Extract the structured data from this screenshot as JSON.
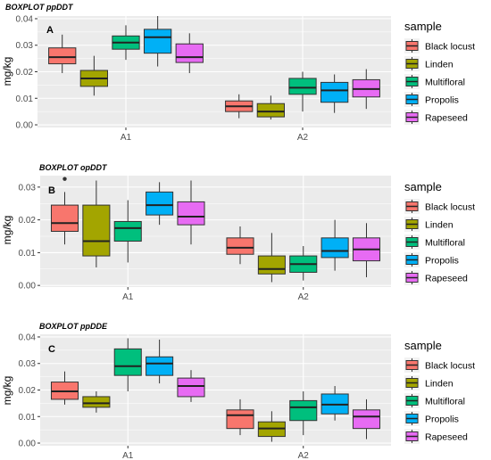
{
  "colors": {
    "Black locust": "#F8766D",
    "Linden": "#A3A500",
    "Multifloral": "#00BF7D",
    "Propolis": "#00B0F6",
    "Rapeseed": "#E76BF3"
  },
  "chart_data": [
    {
      "type": "boxplot",
      "title": "BOXPLOT ppDDT",
      "panel_label": "A",
      "xlabel": "",
      "ylabel": "mg/kg",
      "ylim": [
        -0.001,
        0.041
      ],
      "yticks": [
        0.0,
        0.01,
        0.02,
        0.03,
        0.04
      ],
      "ytick_labels": [
        "0.00",
        "0.01",
        "0.02",
        "0.03",
        "0.04"
      ],
      "categories": [
        "A1",
        "A2"
      ],
      "legend_title": "sample",
      "grid": true,
      "series": [
        {
          "name": "Black locust",
          "boxes": [
            {
              "min": 0.0195,
              "q1": 0.023,
              "median": 0.0255,
              "q3": 0.029,
              "max": 0.034,
              "outliers": []
            },
            {
              "min": 0.0025,
              "q1": 0.005,
              "median": 0.007,
              "q3": 0.009,
              "max": 0.0115,
              "outliers": []
            }
          ]
        },
        {
          "name": "Linden",
          "boxes": [
            {
              "min": 0.011,
              "q1": 0.0145,
              "median": 0.0175,
              "q3": 0.0205,
              "max": 0.026,
              "outliers": []
            },
            {
              "min": 0.002,
              "q1": 0.003,
              "median": 0.005,
              "q3": 0.008,
              "max": 0.011,
              "outliers": []
            }
          ]
        },
        {
          "name": "Multifloral",
          "boxes": [
            {
              "min": 0.0245,
              "q1": 0.0285,
              "median": 0.031,
              "q3": 0.0335,
              "max": 0.0375,
              "outliers": []
            },
            {
              "min": 0.005,
              "q1": 0.0115,
              "median": 0.014,
              "q3": 0.0175,
              "max": 0.02,
              "outliers": []
            }
          ]
        },
        {
          "name": "Propolis",
          "boxes": [
            {
              "min": 0.022,
              "q1": 0.027,
              "median": 0.033,
              "q3": 0.036,
              "max": 0.041,
              "outliers": []
            },
            {
              "min": 0.0045,
              "q1": 0.0085,
              "median": 0.013,
              "q3": 0.016,
              "max": 0.019,
              "outliers": []
            }
          ]
        },
        {
          "name": "Rapeseed",
          "boxes": [
            {
              "min": 0.0195,
              "q1": 0.0235,
              "median": 0.0255,
              "q3": 0.0305,
              "max": 0.0345,
              "outliers": []
            },
            {
              "min": 0.006,
              "q1": 0.0105,
              "median": 0.0135,
              "q3": 0.017,
              "max": 0.021,
              "outliers": []
            }
          ]
        }
      ]
    },
    {
      "type": "boxplot",
      "title": "BOXPLOT opDDT",
      "panel_label": "B",
      "xlabel": "",
      "ylabel": "mg/kg",
      "ylim": [
        -0.0005,
        0.0335
      ],
      "yticks": [
        0.0,
        0.01,
        0.02,
        0.03
      ],
      "ytick_labels": [
        "0.00",
        "0.01",
        "0.02",
        "0.03"
      ],
      "categories": [
        "A1",
        "A2"
      ],
      "legend_title": "sample",
      "grid": true,
      "series": [
        {
          "name": "Black locust",
          "boxes": [
            {
              "min": 0.0125,
              "q1": 0.0165,
              "median": 0.019,
              "q3": 0.0245,
              "max": 0.0285,
              "outliers": [
                0.0325
              ]
            },
            {
              "min": 0.0065,
              "q1": 0.0095,
              "median": 0.0115,
              "q3": 0.0145,
              "max": 0.018,
              "outliers": []
            }
          ]
        },
        {
          "name": "Linden",
          "boxes": [
            {
              "min": 0.0055,
              "q1": 0.009,
              "median": 0.0135,
              "q3": 0.0245,
              "max": 0.032,
              "outliers": []
            },
            {
              "min": 0.001,
              "q1": 0.0035,
              "median": 0.005,
              "q3": 0.009,
              "max": 0.016,
              "outliers": []
            }
          ]
        },
        {
          "name": "Multifloral",
          "boxes": [
            {
              "min": 0.007,
              "q1": 0.0135,
              "median": 0.0175,
              "q3": 0.0195,
              "max": 0.026,
              "outliers": []
            },
            {
              "min": 0.0015,
              "q1": 0.004,
              "median": 0.0065,
              "q3": 0.009,
              "max": 0.012,
              "outliers": []
            }
          ]
        },
        {
          "name": "Propolis",
          "boxes": [
            {
              "min": 0.0185,
              "q1": 0.0215,
              "median": 0.0245,
              "q3": 0.0285,
              "max": 0.0315,
              "outliers": []
            },
            {
              "min": 0.0045,
              "q1": 0.0085,
              "median": 0.0105,
              "q3": 0.0145,
              "max": 0.02,
              "outliers": []
            }
          ]
        },
        {
          "name": "Rapeseed",
          "boxes": [
            {
              "min": 0.0125,
              "q1": 0.0185,
              "median": 0.021,
              "q3": 0.0255,
              "max": 0.032,
              "outliers": []
            },
            {
              "min": 0.0025,
              "q1": 0.0075,
              "median": 0.011,
              "q3": 0.0145,
              "max": 0.019,
              "outliers": []
            }
          ]
        }
      ]
    },
    {
      "type": "boxplot",
      "title": "BOXPLOT ppDDE",
      "panel_label": "C",
      "xlabel": "",
      "ylabel": "mg/kg",
      "ylim": [
        -0.001,
        0.041
      ],
      "yticks": [
        0.0,
        0.01,
        0.02,
        0.03,
        0.04
      ],
      "ytick_labels": [
        "0.00",
        "0.01",
        "0.02",
        "0.03",
        "0.04"
      ],
      "categories": [
        "A1",
        "A2"
      ],
      "legend_title": "sample",
      "grid": true,
      "series": [
        {
          "name": "Black locust",
          "boxes": [
            {
              "min": 0.0145,
              "q1": 0.0165,
              "median": 0.0195,
              "q3": 0.023,
              "max": 0.027,
              "outliers": []
            },
            {
              "min": 0.003,
              "q1": 0.0055,
              "median": 0.0105,
              "q3": 0.0125,
              "max": 0.0165,
              "outliers": []
            }
          ]
        },
        {
          "name": "Linden",
          "boxes": [
            {
              "min": 0.0115,
              "q1": 0.0135,
              "median": 0.015,
              "q3": 0.0175,
              "max": 0.0195,
              "outliers": []
            },
            {
              "min": 0.0005,
              "q1": 0.0025,
              "median": 0.0055,
              "q3": 0.008,
              "max": 0.012,
              "outliers": []
            }
          ]
        },
        {
          "name": "Multifloral",
          "boxes": [
            {
              "min": 0.0195,
              "q1": 0.0255,
              "median": 0.029,
              "q3": 0.0355,
              "max": 0.0395,
              "outliers": []
            },
            {
              "min": 0.003,
              "q1": 0.0085,
              "median": 0.0135,
              "q3": 0.016,
              "max": 0.0195,
              "outliers": []
            }
          ]
        },
        {
          "name": "Propolis",
          "boxes": [
            {
              "min": 0.0225,
              "q1": 0.0255,
              "median": 0.03,
              "q3": 0.0325,
              "max": 0.039,
              "outliers": []
            },
            {
              "min": 0.0085,
              "q1": 0.011,
              "median": 0.0145,
              "q3": 0.0185,
              "max": 0.0215,
              "outliers": []
            }
          ]
        },
        {
          "name": "Rapeseed",
          "boxes": [
            {
              "min": 0.0155,
              "q1": 0.0175,
              "median": 0.0215,
              "q3": 0.0245,
              "max": 0.0275,
              "outliers": []
            },
            {
              "min": 0.0015,
              "q1": 0.0055,
              "median": 0.01,
              "q3": 0.0125,
              "max": 0.0165,
              "outliers": []
            }
          ]
        }
      ]
    }
  ]
}
